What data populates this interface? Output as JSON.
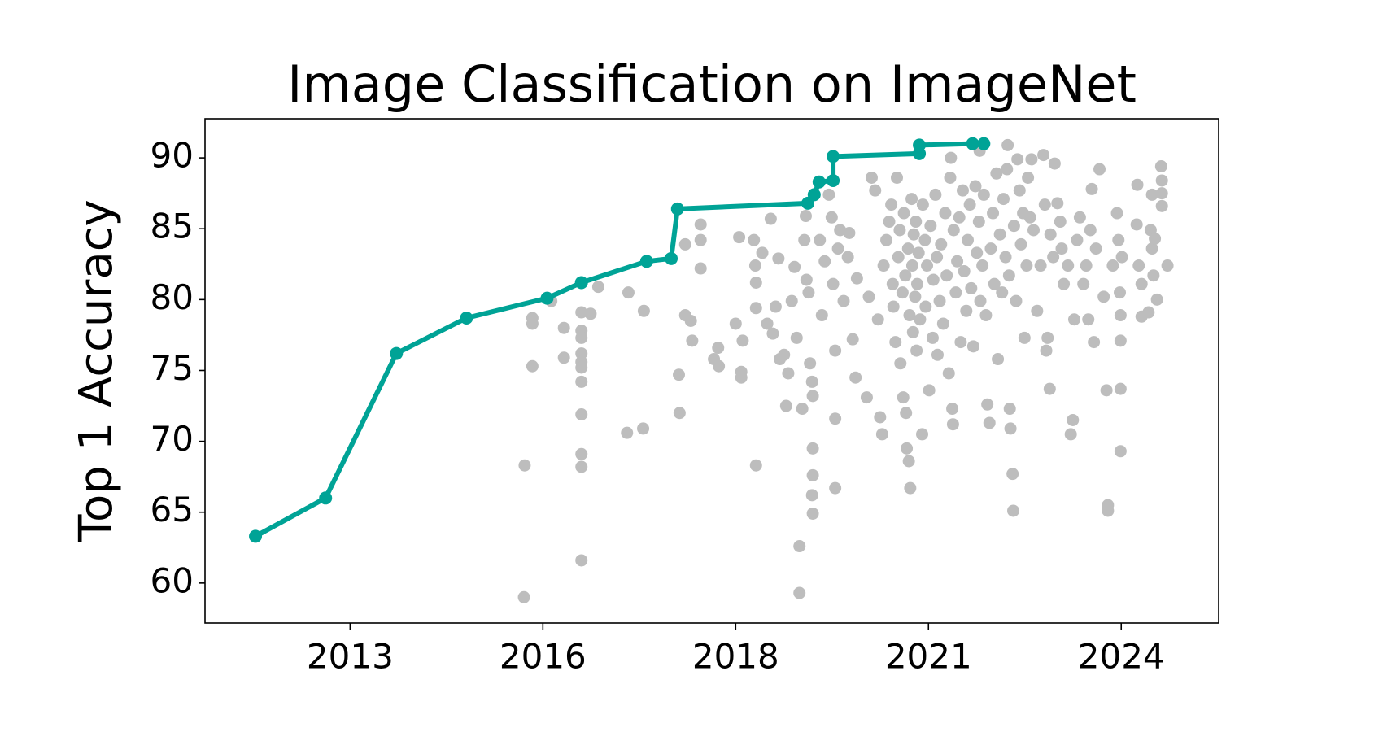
{
  "chart_data": {
    "type": "line",
    "title": "Image Classification on ImageNet",
    "y_label": "Top 1 Accuracy",
    "xlim": [
      2011.23,
      2025.69
    ],
    "ylim": [
      57.18,
      92.76
    ],
    "xticks": [
      {
        "value": 2013.3,
        "label": "2013"
      },
      {
        "value": 2016.05,
        "label": "2016"
      },
      {
        "value": 2018.8,
        "label": "2018"
      },
      {
        "value": 2021.55,
        "label": "2021"
      },
      {
        "value": 2024.3,
        "label": "2024"
      }
    ],
    "yticks": [
      60,
      65,
      70,
      75,
      80,
      85,
      90
    ],
    "grid": false,
    "series": [
      {
        "type": "scatter",
        "color": "#bdbdbd",
        "x": [
          2015.79,
          2015.78,
          2015.9,
          2015.9,
          2015.9,
          2016.17,
          2016.35,
          2016.35,
          2016.6,
          2016.6,
          2016.6,
          2016.6,
          2016.6,
          2016.6,
          2016.6,
          2016.6,
          2016.6,
          2016.6,
          2016.6,
          2016.73,
          2016.84,
          2017.27,
          2017.25,
          2017.48,
          2017.49,
          2017.99,
          2018.0,
          2018.08,
          2018.08,
          2018.16,
          2018.18,
          2018.3,
          2018.3,
          2018.3,
          2018.49,
          2018.55,
          2018.56,
          2018.8,
          2018.85,
          2018.88,
          2018.88,
          2018.9,
          2019.06,
          2019.08,
          2019.09,
          2019.09,
          2019.09,
          2019.18,
          2019.25,
          2019.3,
          2019.33,
          2019.37,
          2019.41,
          2019.43,
          2019.49,
          2019.52,
          2019.55,
          2019.6,
          2019.64,
          2019.67,
          2019.71,
          2019.71,
          2019.75,
          2019.78,
          2019.8,
          2019.81,
          2019.84,
          2019.86,
          2019.89,
          2019.9,
          2019.9,
          2019.9,
          2019.89,
          2019.9,
          2020.0,
          2020.03,
          2020.07,
          2020.13,
          2020.17,
          2020.19,
          2020.22,
          2020.22,
          2020.22,
          2020.26,
          2020.29,
          2020.34,
          2020.4,
          2020.42,
          2020.47,
          2020.51,
          2020.53,
          2020.67,
          2020.7,
          2020.74,
          2020.79,
          2020.83,
          2020.86,
          2020.89,
          2020.91,
          2020.95,
          2020.99,
          2021.02,
          2021.04,
          2021.05,
          2021.08,
          2021.1,
          2021.12,
          2021.14,
          2021.15,
          2021.18,
          2021.19,
          2021.2,
          2021.22,
          2021.23,
          2021.24,
          2021.26,
          2021.27,
          2021.28,
          2021.29,
          2021.31,
          2021.32,
          2021.33,
          2021.34,
          2021.36,
          2021.37,
          2021.38,
          2021.39,
          2021.41,
          2021.43,
          2021.46,
          2021.47,
          2021.5,
          2021.51,
          2021.53,
          2021.56,
          2021.58,
          2021.61,
          2021.62,
          2021.65,
          2021.67,
          2021.68,
          2021.71,
          2021.73,
          2021.76,
          2021.79,
          2021.81,
          2021.84,
          2021.86,
          2021.87,
          2021.89,
          2021.9,
          2021.91,
          2021.94,
          2021.96,
          2021.99,
          2022.01,
          2022.04,
          2022.06,
          2022.09,
          2022.11,
          2022.14,
          2022.16,
          2022.19,
          2022.22,
          2022.24,
          2022.27,
          2022.28,
          2022.29,
          2022.32,
          2022.34,
          2022.37,
          2022.39,
          2022.42,
          2022.44,
          2022.47,
          2022.49,
          2022.52,
          2022.54,
          2022.57,
          2022.6,
          2022.62,
          2022.65,
          2022.67,
          2022.68,
          2022.7,
          2022.71,
          2022.72,
          2022.75,
          2022.76,
          2022.77,
          2022.8,
          2022.82,
          2022.85,
          2022.87,
          2022.9,
          2022.92,
          2022.95,
          2022.97,
          2023.0,
          2023.02,
          2023.05,
          2023.1,
          2023.15,
          2023.19,
          2023.21,
          2023.23,
          2023.25,
          2023.28,
          2023.29,
          2023.33,
          2023.35,
          2023.39,
          2023.43,
          2023.45,
          2023.48,
          2023.54,
          2023.58,
          2023.61,
          2023.63,
          2023.67,
          2023.71,
          2023.76,
          2023.8,
          2023.83,
          2023.86,
          2023.88,
          2023.91,
          2023.94,
          2023.99,
          2024.05,
          2024.09,
          2024.11,
          2024.11,
          2024.18,
          2024.24,
          2024.26,
          2024.28,
          2024.29,
          2024.29,
          2024.29,
          2024.29,
          2024.31,
          2024.52,
          2024.53,
          2024.55,
          2024.59,
          2024.59,
          2024.69,
          2024.72,
          2024.74,
          2024.74,
          2024.76,
          2024.78,
          2024.81,
          2024.87,
          2024.88,
          2024.88,
          2024.88,
          2024.96
        ],
        "values": [
          68.3,
          59.0,
          78.7,
          78.3,
          75.3,
          79.9,
          78.0,
          75.9,
          79.1,
          77.8,
          77.3,
          76.2,
          75.6,
          75.2,
          74.2,
          71.9,
          69.1,
          68.2,
          61.6,
          79.0,
          80.9,
          80.5,
          70.6,
          70.9,
          79.2,
          74.7,
          72.0,
          83.9,
          78.9,
          78.5,
          77.1,
          85.3,
          84.2,
          82.2,
          75.8,
          76.6,
          75.3,
          78.3,
          84.4,
          74.9,
          74.5,
          77.1,
          84.2,
          82.4,
          81.2,
          79.4,
          68.3,
          83.3,
          78.3,
          85.7,
          77.6,
          79.5,
          82.9,
          75.8,
          76.1,
          72.5,
          74.8,
          79.9,
          82.3,
          77.3,
          59.3,
          62.6,
          72.3,
          84.2,
          85.9,
          81.4,
          80.5,
          75.5,
          74.2,
          73.2,
          69.5,
          67.6,
          66.2,
          64.9,
          84.2,
          78.9,
          82.7,
          87.4,
          85.8,
          81.1,
          76.4,
          71.6,
          66.7,
          83.6,
          84.9,
          79.9,
          83.0,
          84.7,
          77.2,
          74.5,
          81.5,
          73.1,
          80.2,
          88.6,
          87.7,
          78.6,
          71.7,
          70.5,
          82.4,
          84.2,
          85.5,
          86.7,
          81.1,
          79.5,
          77.0,
          88.6,
          83.0,
          84.9,
          75.5,
          80.5,
          73.1,
          86.1,
          81.7,
          72.0,
          69.5,
          83.6,
          68.6,
          78.9,
          66.7,
          87.1,
          82.4,
          77.7,
          84.6,
          80.2,
          85.5,
          76.4,
          81.1,
          83.3,
          78.6,
          70.5,
          86.7,
          84.2,
          79.5,
          82.4,
          73.6,
          85.2,
          77.3,
          81.4,
          87.4,
          83.0,
          76.1,
          79.9,
          83.9,
          78.3,
          86.1,
          81.7,
          74.8,
          88.6,
          90.0,
          72.3,
          71.2,
          84.9,
          80.5,
          82.7,
          85.8,
          77.0,
          87.7,
          82.0,
          79.2,
          84.2,
          86.7,
          80.8,
          76.7,
          88.0,
          83.3,
          85.5,
          90.5,
          79.9,
          82.4,
          87.4,
          78.9,
          72.6,
          71.3,
          83.6,
          86.1,
          81.1,
          88.9,
          75.8,
          84.6,
          80.5,
          87.1,
          83.0,
          89.2,
          90.9,
          81.7,
          72.3,
          70.9,
          67.7,
          65.1,
          85.2,
          79.9,
          89.9,
          87.7,
          83.9,
          86.1,
          77.3,
          82.4,
          88.6,
          85.8,
          89.9,
          84.9,
          79.2,
          82.4,
          90.2,
          86.7,
          76.4,
          77.3,
          73.7,
          84.6,
          83.0,
          89.6,
          86.8,
          85.5,
          83.6,
          81.1,
          82.4,
          70.5,
          71.5,
          78.6,
          84.2,
          85.8,
          81.1,
          82.4,
          78.6,
          84.9,
          87.8,
          77.0,
          83.6,
          89.2,
          80.2,
          73.6,
          65.5,
          65.1,
          82.4,
          86.1,
          84.2,
          80.5,
          78.9,
          77.1,
          73.7,
          69.3,
          83.0,
          85.3,
          88.1,
          82.4,
          81.1,
          78.8,
          79.1,
          84.9,
          83.6,
          87.4,
          81.7,
          84.3,
          80.0,
          89.4,
          88.4,
          87.5,
          86.6,
          82.4
        ]
      },
      {
        "type": "line",
        "color": "#00a396",
        "x": [
          2011.95,
          2012.95,
          2013.96,
          2014.96,
          2016.11,
          2016.6,
          2017.53,
          2017.88,
          2017.97,
          2019.83,
          2019.92,
          2019.99,
          2020.19,
          2020.19,
          2021.42,
          2021.42,
          2022.18,
          2022.34
        ],
        "values": [
          63.3,
          66.0,
          76.2,
          78.7,
          80.1,
          81.2,
          82.7,
          82.9,
          86.4,
          86.8,
          87.4,
          88.3,
          88.4,
          90.1,
          90.3,
          90.9,
          91.0,
          91.0
        ]
      }
    ]
  }
}
